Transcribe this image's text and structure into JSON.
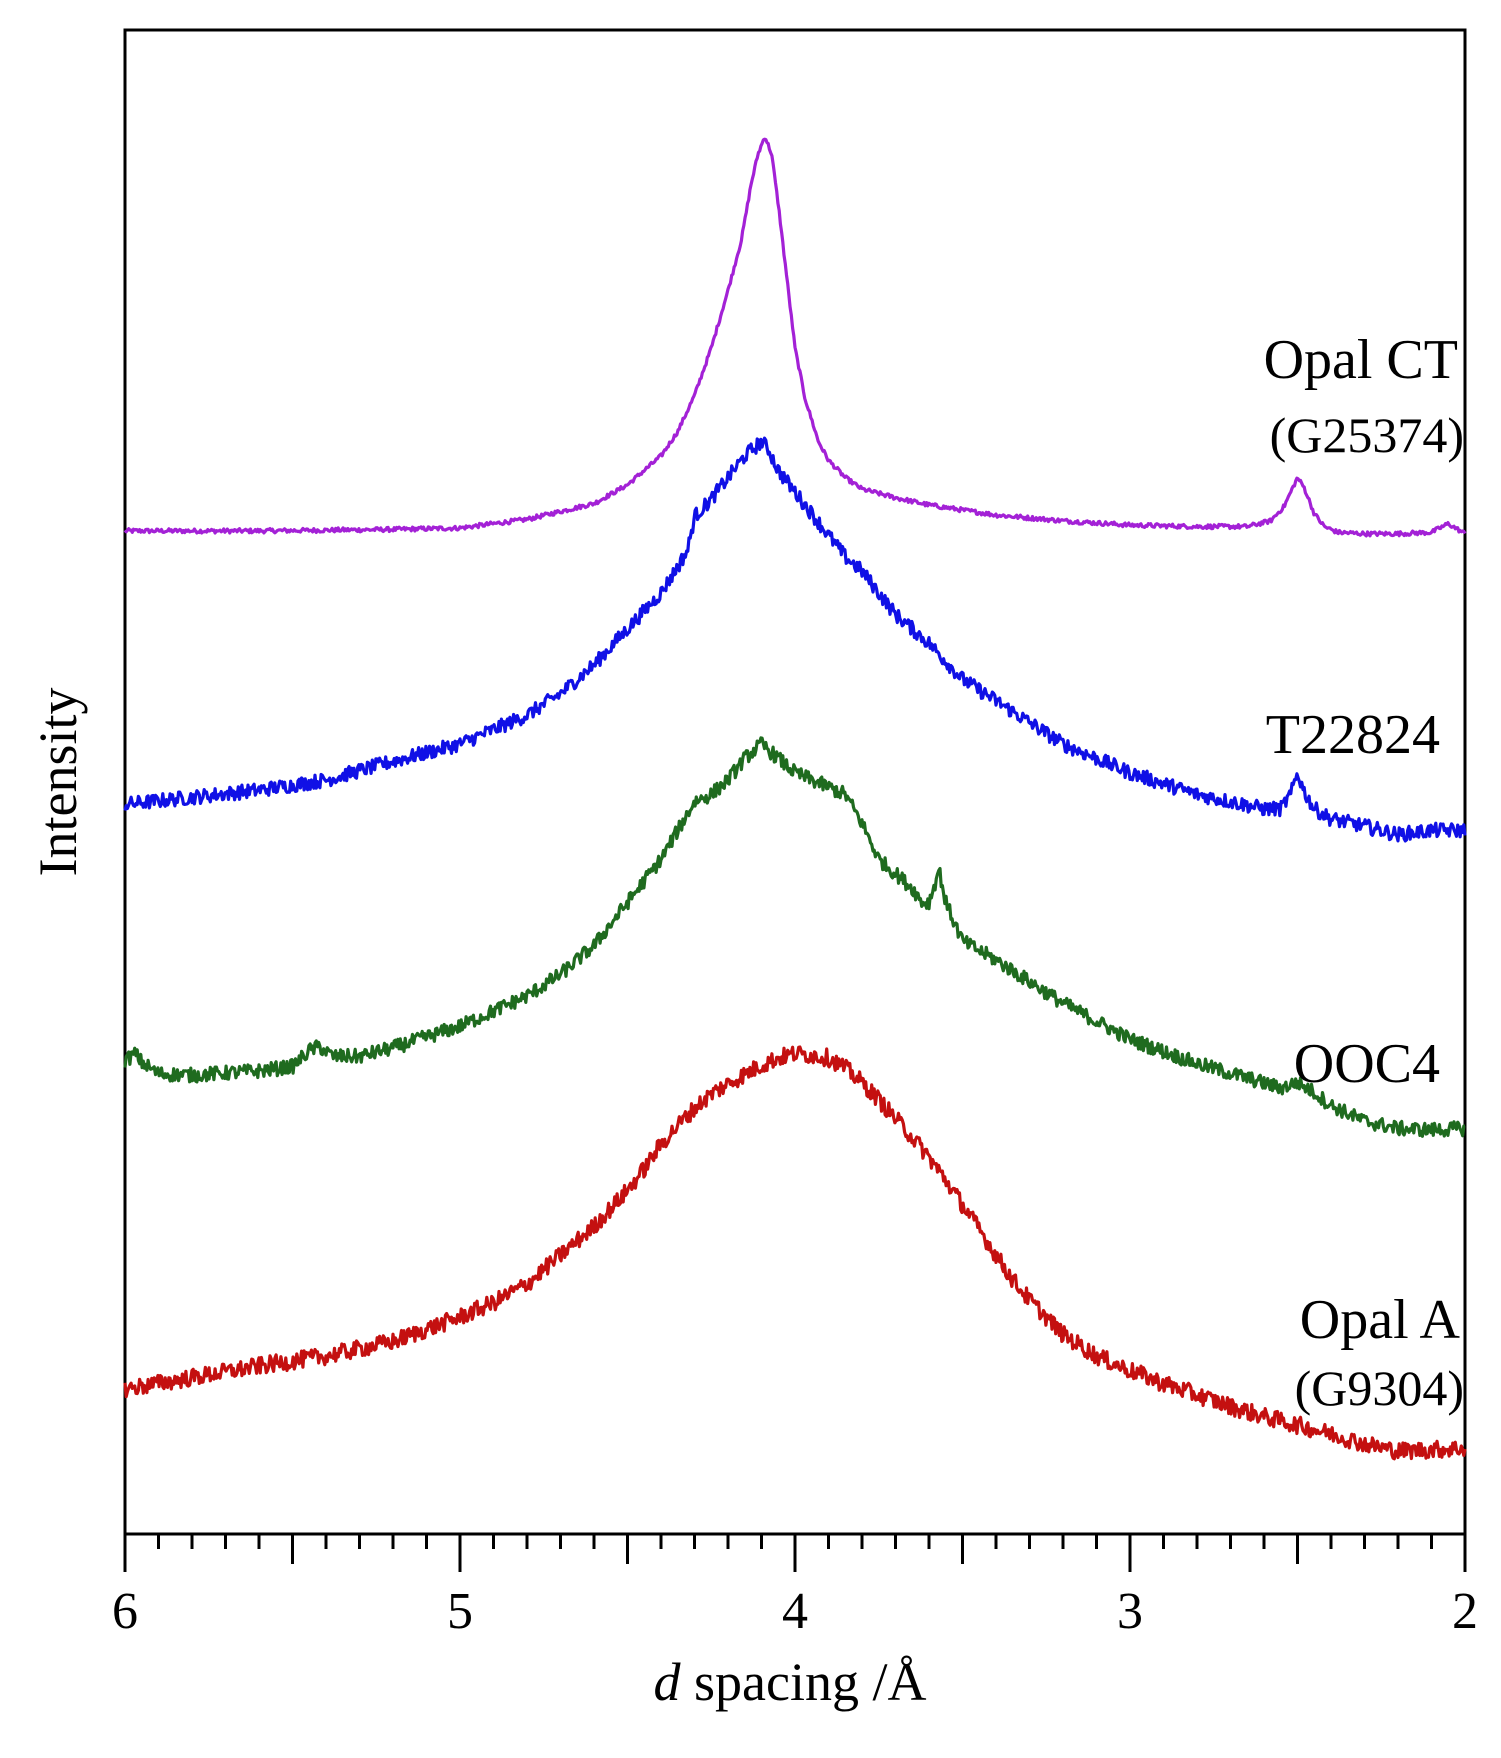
{
  "chart_data": {
    "type": "line",
    "title": "",
    "xlabel_italic": "d",
    "xlabel_rest": " spacing /Å",
    "ylabel": "Intensity",
    "xlim": [
      6,
      2
    ],
    "ylim": [
      0,
      100
    ],
    "x_ticks": [
      6,
      5,
      4,
      3,
      2
    ],
    "x_tick_labels": [
      "6",
      "5",
      "4",
      "3",
      "2"
    ],
    "x_minor_step": 0.1,
    "y_ticks": [],
    "grid": false,
    "legend": "inline labels at right",
    "x_direction": "reversed",
    "series": [
      {
        "name": "Opal CT",
        "sublabel": "(G25374)",
        "color": "#a321d6",
        "noise": 0.15,
        "points": [
          [
            6.0,
            67.3
          ],
          [
            5.6,
            67.3
          ],
          [
            5.2,
            67.4
          ],
          [
            5.0,
            67.5
          ],
          [
            4.8,
            68.1
          ],
          [
            4.6,
            69.2
          ],
          [
            4.5,
            70.5
          ],
          [
            4.4,
            72.5
          ],
          [
            4.35,
            74.2
          ],
          [
            4.3,
            76.7
          ],
          [
            4.25,
            80.0
          ],
          [
            4.2,
            84.0
          ],
          [
            4.16,
            87.5
          ],
          [
            4.13,
            91.5
          ],
          [
            4.11,
            93.5
          ],
          [
            4.09,
            94.7
          ],
          [
            4.07,
            93.5
          ],
          [
            4.05,
            90.0
          ],
          [
            4.02,
            84.0
          ],
          [
            4.0,
            80.0
          ],
          [
            3.97,
            76.5
          ],
          [
            3.93,
            73.5
          ],
          [
            3.9,
            72.2
          ],
          [
            3.85,
            71.0
          ],
          [
            3.8,
            70.2
          ],
          [
            3.7,
            69.6
          ],
          [
            3.6,
            69.1
          ],
          [
            3.4,
            68.4
          ],
          [
            3.2,
            68.0
          ],
          [
            3.0,
            67.7
          ],
          [
            2.8,
            67.6
          ],
          [
            2.65,
            67.6
          ],
          [
            2.58,
            68.0
          ],
          [
            2.54,
            69.0
          ],
          [
            2.51,
            70.5
          ],
          [
            2.5,
            71.0
          ],
          [
            2.48,
            70.3
          ],
          [
            2.45,
            68.5
          ],
          [
            2.42,
            67.6
          ],
          [
            2.38,
            67.2
          ],
          [
            2.3,
            67.1
          ],
          [
            2.2,
            67.1
          ],
          [
            2.1,
            67.2
          ],
          [
            2.05,
            67.8
          ],
          [
            2.0,
            67.1
          ]
        ]
      },
      {
        "name": "T22824",
        "sublabel": "",
        "color": "#1010e6",
        "noise": 0.5,
        "points": [
          [
            6.0,
            48.3
          ],
          [
            5.8,
            48.8
          ],
          [
            5.6,
            49.3
          ],
          [
            5.4,
            50.0
          ],
          [
            5.2,
            51.3
          ],
          [
            5.0,
            52.5
          ],
          [
            4.8,
            54.5
          ],
          [
            4.7,
            56.0
          ],
          [
            4.6,
            58.0
          ],
          [
            4.5,
            60.5
          ],
          [
            4.4,
            63.0
          ],
          [
            4.35,
            64.8
          ],
          [
            4.32,
            66.0
          ],
          [
            4.3,
            68.3
          ],
          [
            4.25,
            69.5
          ],
          [
            4.2,
            71.0
          ],
          [
            4.15,
            72.5
          ],
          [
            4.1,
            73.5
          ],
          [
            4.08,
            73.0
          ],
          [
            4.05,
            71.5
          ],
          [
            4.0,
            70.0
          ],
          [
            3.95,
            68.5
          ],
          [
            3.9,
            67.0
          ],
          [
            3.85,
            65.5
          ],
          [
            3.8,
            64.5
          ],
          [
            3.75,
            63.0
          ],
          [
            3.7,
            61.5
          ],
          [
            3.6,
            59.5
          ],
          [
            3.5,
            57.0
          ],
          [
            3.4,
            55.5
          ],
          [
            3.3,
            54.0
          ],
          [
            3.2,
            52.5
          ],
          [
            3.0,
            50.5
          ],
          [
            2.8,
            49.0
          ],
          [
            2.6,
            48.0
          ],
          [
            2.55,
            48.0
          ],
          [
            2.52,
            49.0
          ],
          [
            2.5,
            50.5
          ],
          [
            2.48,
            49.2
          ],
          [
            2.45,
            48.0
          ],
          [
            2.4,
            47.3
          ],
          [
            2.3,
            46.8
          ],
          [
            2.2,
            46.2
          ],
          [
            2.1,
            46.5
          ],
          [
            2.0,
            46.5
          ]
        ]
      },
      {
        "name": "OOC4",
        "sublabel": "",
        "color": "#1f6b1f",
        "noise": 0.5,
        "points": [
          [
            6.0,
            30.5
          ],
          [
            5.97,
            31.0
          ],
          [
            5.95,
            30.4
          ],
          [
            5.9,
            29.6
          ],
          [
            5.8,
            29.5
          ],
          [
            5.6,
            29.8
          ],
          [
            5.5,
            30.1
          ],
          [
            5.45,
            31.2
          ],
          [
            5.42,
            31.5
          ],
          [
            5.38,
            30.8
          ],
          [
            5.3,
            30.8
          ],
          [
            5.2,
            31.4
          ],
          [
            5.0,
            32.9
          ],
          [
            4.8,
            35.0
          ],
          [
            4.7,
            36.5
          ],
          [
            4.6,
            38.5
          ],
          [
            4.5,
            41.5
          ],
          [
            4.4,
            44.5
          ],
          [
            4.35,
            46.5
          ],
          [
            4.3,
            48.5
          ],
          [
            4.25,
            49.0
          ],
          [
            4.2,
            50.0
          ],
          [
            4.15,
            51.5
          ],
          [
            4.1,
            52.5
          ],
          [
            4.05,
            51.5
          ],
          [
            4.0,
            50.5
          ],
          [
            3.9,
            49.5
          ],
          [
            3.85,
            49.0
          ],
          [
            3.8,
            47.0
          ],
          [
            3.75,
            44.5
          ],
          [
            3.7,
            43.5
          ],
          [
            3.65,
            42.5
          ],
          [
            3.62,
            41.5
          ],
          [
            3.6,
            41.5
          ],
          [
            3.58,
            43.0
          ],
          [
            3.57,
            43.8
          ],
          [
            3.55,
            41.5
          ],
          [
            3.5,
            38.8
          ],
          [
            3.4,
            37.5
          ],
          [
            3.3,
            36.0
          ],
          [
            3.2,
            34.5
          ],
          [
            3.0,
            32.0
          ],
          [
            2.8,
            30.3
          ],
          [
            2.65,
            29.3
          ],
          [
            2.55,
            28.6
          ],
          [
            2.5,
            29.0
          ],
          [
            2.45,
            28.3
          ],
          [
            2.4,
            27.4
          ],
          [
            2.3,
            26.3
          ],
          [
            2.2,
            25.8
          ],
          [
            2.1,
            25.7
          ],
          [
            2.0,
            25.8
          ]
        ]
      },
      {
        "name": "Opal A",
        "sublabel": "(G9304)",
        "color": "#c41010",
        "noise": 0.6,
        "points": [
          [
            6.0,
            7.7
          ],
          [
            5.8,
            8.5
          ],
          [
            5.6,
            9.3
          ],
          [
            5.4,
            10.0
          ],
          [
            5.2,
            11.0
          ],
          [
            5.0,
            12.7
          ],
          [
            4.9,
            13.7
          ],
          [
            4.8,
            15.0
          ],
          [
            4.7,
            17.0
          ],
          [
            4.6,
            19.0
          ],
          [
            4.5,
            21.5
          ],
          [
            4.45,
            23.0
          ],
          [
            4.4,
            24.7
          ],
          [
            4.35,
            26.0
          ],
          [
            4.3,
            27.2
          ],
          [
            4.25,
            28.2
          ],
          [
            4.2,
            28.9
          ],
          [
            4.1,
            30.2
          ],
          [
            4.05,
            30.7
          ],
          [
            4.0,
            31.0
          ],
          [
            3.95,
            30.9
          ],
          [
            3.9,
            30.7
          ],
          [
            3.85,
            30.0
          ],
          [
            3.8,
            29.0
          ],
          [
            3.75,
            27.8
          ],
          [
            3.7,
            26.5
          ],
          [
            3.65,
            25.2
          ],
          [
            3.6,
            23.8
          ],
          [
            3.55,
            22.2
          ],
          [
            3.5,
            20.5
          ],
          [
            3.45,
            18.8
          ],
          [
            3.4,
            17.0
          ],
          [
            3.35,
            15.3
          ],
          [
            3.3,
            13.9
          ],
          [
            3.2,
            11.5
          ],
          [
            3.1,
            10.0
          ],
          [
            3.0,
            9.0
          ],
          [
            2.9,
            8.1
          ],
          [
            2.8,
            7.3
          ],
          [
            2.7,
            6.5
          ],
          [
            2.6,
            5.8
          ],
          [
            2.5,
            5.2
          ],
          [
            2.4,
            4.6
          ],
          [
            2.3,
            3.9
          ],
          [
            2.2,
            3.4
          ],
          [
            2.1,
            3.5
          ],
          [
            2.0,
            3.6
          ]
        ]
      }
    ]
  }
}
